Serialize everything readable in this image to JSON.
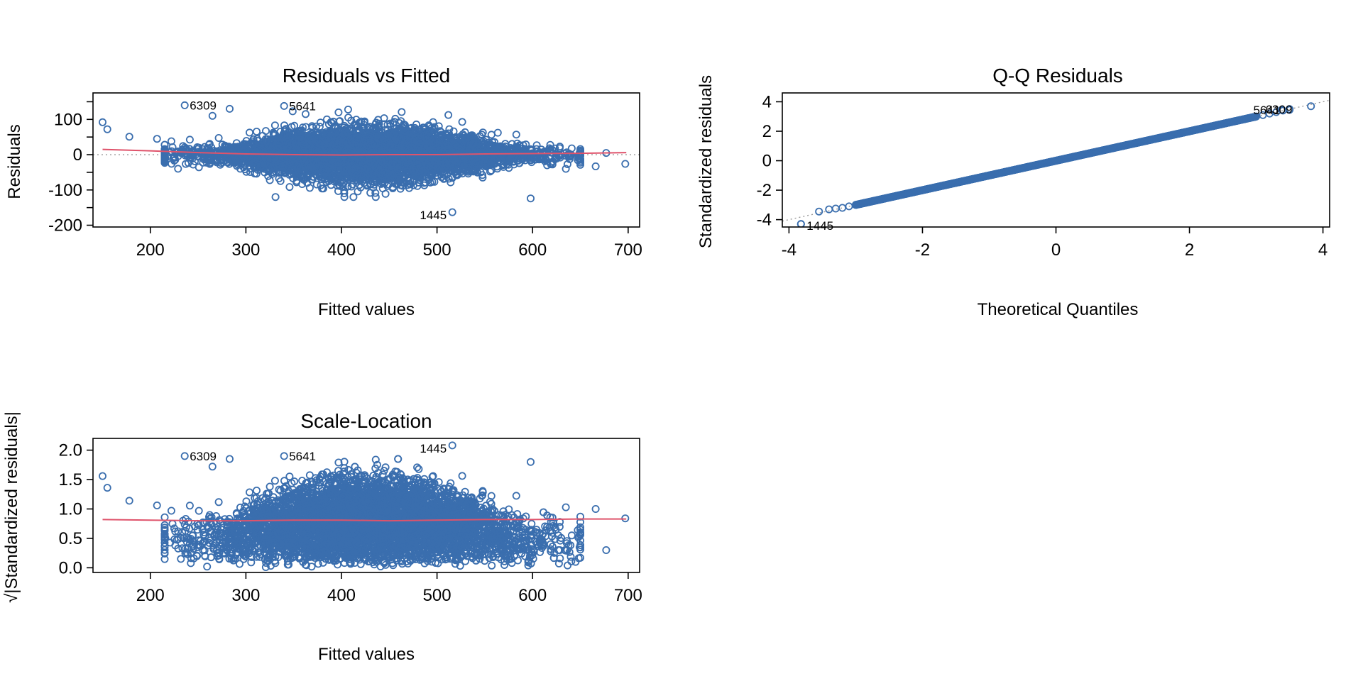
{
  "colors": {
    "points": "#3A6EAE",
    "smoother": "#DF536B",
    "refline": "#9A9A9A",
    "frame": "#000000"
  },
  "chart_data": [
    {
      "id": "residuals-vs-fitted",
      "type": "scatter",
      "title": "Residuals vs Fitted",
      "xlabel": "Fitted values",
      "ylabel": "Residuals",
      "xlim": [
        140,
        712
      ],
      "ylim": [
        -205,
        175
      ],
      "xticks": [
        200,
        300,
        400,
        500,
        600,
        700
      ],
      "yticks": [
        -200,
        -100,
        0,
        100
      ],
      "minor_yticks": [
        -150,
        -50,
        50,
        150
      ],
      "ref_line": {
        "type": "horizontal",
        "y": 0
      },
      "smoother": [
        [
          150,
          15
        ],
        [
          200,
          11
        ],
        [
          250,
          6
        ],
        [
          300,
          2
        ],
        [
          350,
          0
        ],
        [
          400,
          -1
        ],
        [
          450,
          0
        ],
        [
          500,
          0
        ],
        [
          550,
          2
        ],
        [
          600,
          3
        ],
        [
          650,
          4
        ],
        [
          698,
          6
        ]
      ],
      "cloud": {
        "x_center": 430,
        "x_spread": 80,
        "resid_sd": 38
      },
      "outliers": [
        [
          150,
          92
        ],
        [
          155,
          72
        ],
        [
          178,
          51
        ],
        [
          207,
          45
        ],
        [
          222,
          38
        ],
        [
          229,
          -40
        ],
        [
          232,
          5
        ],
        [
          239,
          10
        ],
        [
          265,
          110
        ],
        [
          283,
          130
        ],
        [
          349,
          123
        ],
        [
          407,
          128
        ],
        [
          463,
          121
        ],
        [
          598,
          -124
        ],
        [
          641,
          18
        ],
        [
          666,
          -33
        ],
        [
          677,
          5
        ],
        [
          697,
          -26
        ]
      ],
      "labeled_points": [
        {
          "label": "6309",
          "x": 236,
          "y": 140
        },
        {
          "label": "5641",
          "x": 340,
          "y": 138
        },
        {
          "label": "1445",
          "x": 516,
          "y": -163
        }
      ]
    },
    {
      "id": "qq-residuals",
      "type": "scatter",
      "title": "Q-Q Residuals",
      "xlabel": "Theoretical Quantiles",
      "ylabel": "Standardized residuals",
      "xlim": [
        -4.1,
        4.1
      ],
      "ylim": [
        -4.5,
        4.6
      ],
      "xticks": [
        -4,
        -2,
        0,
        2,
        4
      ],
      "yticks": [
        -4,
        -2,
        0,
        2,
        4
      ],
      "ref_line": {
        "type": "diagonal",
        "slope": 1,
        "intercept": 0
      },
      "quantile_points": [
        [
          -3.82,
          -4.3
        ],
        [
          -3.55,
          -3.45
        ],
        [
          -3.4,
          -3.3
        ],
        [
          -3.3,
          -3.25
        ],
        [
          -3.2,
          -3.2
        ],
        [
          -3.1,
          -3.1
        ],
        [
          3.1,
          3.1
        ],
        [
          3.2,
          3.2
        ],
        [
          3.3,
          3.3
        ],
        [
          3.4,
          3.4
        ],
        [
          3.5,
          3.45
        ],
        [
          3.82,
          3.7
        ]
      ],
      "labeled_points": [
        {
          "label": "5641",
          "x": 3.38,
          "y": 3.45
        },
        {
          "label": "6309",
          "x": 3.5,
          "y": 3.5
        },
        {
          "label": "1445",
          "x": -3.82,
          "y": -4.3
        }
      ]
    },
    {
      "id": "scale-location",
      "type": "scatter",
      "title": "Scale-Location",
      "xlabel": "Fitted values",
      "ylabel": "√|Standardized residuals|",
      "xlim": [
        140,
        712
      ],
      "ylim": [
        -0.08,
        2.2
      ],
      "xticks": [
        200,
        300,
        400,
        500,
        600,
        700
      ],
      "yticks": [
        0.0,
        0.5,
        1.0,
        1.5,
        2.0
      ],
      "ytick_labels": [
        "0.0",
        "0.5",
        "1.0",
        "1.5",
        "2.0"
      ],
      "smoother": [
        [
          150,
          0.82
        ],
        [
          200,
          0.81
        ],
        [
          250,
          0.8
        ],
        [
          300,
          0.8
        ],
        [
          350,
          0.81
        ],
        [
          400,
          0.81
        ],
        [
          450,
          0.8
        ],
        [
          500,
          0.81
        ],
        [
          550,
          0.82
        ],
        [
          600,
          0.82
        ],
        [
          650,
          0.83
        ],
        [
          698,
          0.83
        ]
      ],
      "cloud": {
        "x_center": 430,
        "x_spread": 80,
        "resid_sd": 38
      },
      "outliers": [
        [
          150,
          1.56
        ],
        [
          155,
          1.36
        ],
        [
          178,
          1.14
        ],
        [
          207,
          1.06
        ],
        [
          222,
          0.97
        ],
        [
          229,
          0.62
        ],
        [
          232,
          0.15
        ],
        [
          265,
          1.72
        ],
        [
          283,
          1.85
        ],
        [
          598,
          1.8
        ],
        [
          641,
          0.55
        ],
        [
          645,
          0.1
        ],
        [
          666,
          1.0
        ],
        [
          677,
          0.3
        ],
        [
          697,
          0.84
        ]
      ],
      "labeled_points": [
        {
          "label": "6309",
          "x": 236,
          "y": 1.9
        },
        {
          "label": "5641",
          "x": 340,
          "y": 1.9
        },
        {
          "label": "1445",
          "x": 516,
          "y": 2.08
        }
      ]
    }
  ]
}
